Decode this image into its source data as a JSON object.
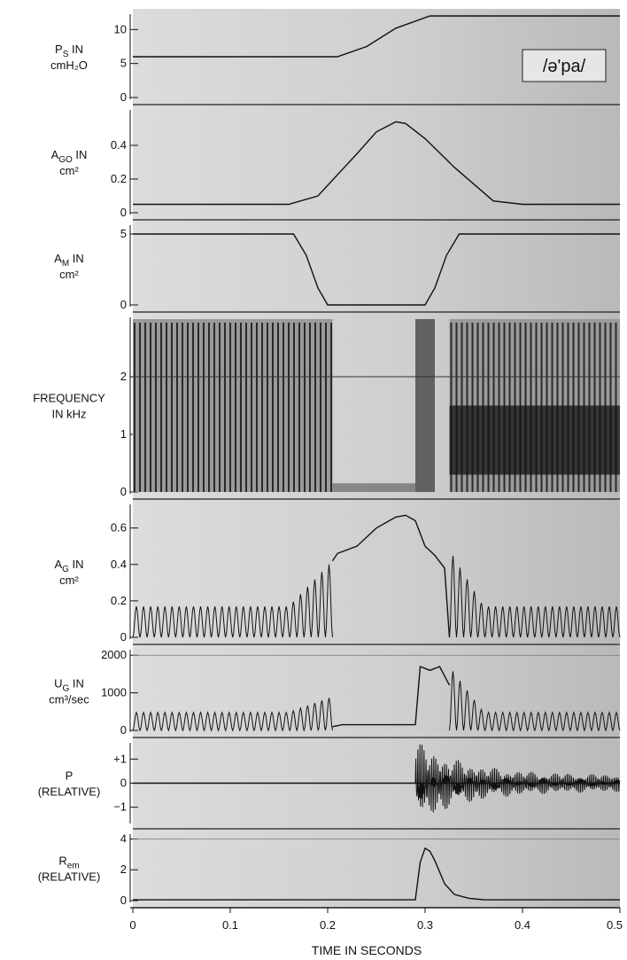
{
  "chart_data": {
    "type": "line",
    "colors": {
      "paper": "#d9d9d9",
      "trace": "#111111",
      "frame": "#111111"
    },
    "annotation": "/ə'pa/",
    "xaxis": {
      "label": "TIME IN SECONDS",
      "range": [
        0,
        0.5
      ],
      "ticks": [
        "0",
        "0.1",
        "0.2",
        "0.3",
        "0.4",
        "0.5"
      ]
    },
    "panels": [
      {
        "id": "ps",
        "label_main": "P",
        "label_sub": "S",
        "label_rest": " IN",
        "label_line2": "cmH₂O",
        "ylim": [
          0,
          12
        ],
        "yticks": [
          {
            "v": 10,
            "t": "10"
          },
          {
            "v": 5,
            "t": "5"
          },
          {
            "v": 0,
            "t": "0"
          }
        ],
        "series": [
          {
            "x": [
              0,
              0.21,
              0.24,
              0.27,
              0.305,
              0.5
            ],
            "y": [
              6,
              6,
              7.5,
              10.2,
              12,
              12
            ]
          }
        ]
      },
      {
        "id": "ago",
        "label_main": "A",
        "label_sub": "GO",
        "label_rest": " IN",
        "label_line2": "cm²",
        "ylim": [
          0,
          0.6
        ],
        "yticks": [
          {
            "v": 0.4,
            "t": "0.4"
          },
          {
            "v": 0.2,
            "t": "0.2"
          },
          {
            "v": 0,
            "t": "0"
          }
        ],
        "series": [
          {
            "x": [
              0,
              0.16,
              0.19,
              0.23,
              0.25,
              0.27,
              0.28,
              0.3,
              0.33,
              0.37,
              0.4,
              0.5
            ],
            "y": [
              0.05,
              0.05,
              0.1,
              0.35,
              0.48,
              0.54,
              0.53,
              0.44,
              0.27,
              0.07,
              0.05,
              0.05
            ]
          }
        ]
      },
      {
        "id": "am",
        "label_main": "A",
        "label_sub": "M",
        "label_rest": " IN",
        "label_line2": "cm²",
        "ylim": [
          0,
          5.5
        ],
        "yticks": [
          {
            "v": 5,
            "t": "5"
          },
          {
            "v": 0,
            "t": "0"
          }
        ],
        "series": [
          {
            "x": [
              0,
              0.165,
              0.178,
              0.19,
              0.2,
              0.3,
              0.31,
              0.322,
              0.335,
              0.5
            ],
            "y": [
              5,
              5,
              3.5,
              1.2,
              0,
              0,
              1.2,
              3.5,
              5,
              5
            ]
          }
        ]
      },
      {
        "id": "freq",
        "kind": "spectrogram",
        "label_main": "FREQUENCY",
        "label_sub": "",
        "label_rest": "",
        "label_line2": "IN kHz",
        "ylim": [
          0,
          3
        ],
        "yticks": [
          {
            "v": 2,
            "t": "2"
          },
          {
            "v": 1,
            "t": "1"
          },
          {
            "v": 0,
            "t": "0"
          }
        ],
        "voiced_segments": [
          [
            0,
            0.205
          ],
          [
            0.325,
            0.5
          ]
        ],
        "burst": [
          0.29,
          0.31
        ]
      },
      {
        "id": "ag",
        "label_main": "A",
        "label_sub": "G",
        "label_rest": " IN",
        "label_line2": "cm²",
        "ylim": [
          0,
          0.72
        ],
        "yticks": [
          {
            "v": 0.6,
            "t": "0.6"
          },
          {
            "v": 0.4,
            "t": "0.4"
          },
          {
            "v": 0.2,
            "t": "0.2"
          },
          {
            "v": 0,
            "t": "0"
          }
        ],
        "series": [
          {
            "x": [
              0.205,
              0.21,
              0.23,
              0.25,
              0.27,
              0.28,
              0.29,
              0.3,
              0.31,
              0.32,
              0.325
            ],
            "y": [
              0.42,
              0.46,
              0.5,
              0.6,
              0.66,
              0.67,
              0.64,
              0.5,
              0.45,
              0.38,
              0
            ]
          }
        ]
      },
      {
        "id": "ug",
        "label_main": "U",
        "label_sub": "G",
        "label_rest": " IN",
        "label_line2": "cm³/sec",
        "ylim": [
          0,
          2100
        ],
        "yticks": [
          {
            "v": 2000,
            "t": "2000"
          },
          {
            "v": 1000,
            "t": "1000"
          },
          {
            "v": 0,
            "t": "0"
          }
        ],
        "series": [
          {
            "x": [
              0.205,
              0.215,
              0.29,
              0.295,
              0.305,
              0.315,
              0.325
            ],
            "y": [
              100,
              150,
              150,
              1700,
              1600,
              1700,
              1200
            ]
          }
        ]
      },
      {
        "id": "p",
        "label_main": "P",
        "label_sub": "",
        "label_rest": "",
        "label_line2": "(RELATIVE)",
        "ylim": [
          -1.6,
          1.6
        ],
        "yticks": [
          {
            "v": 1,
            "t": "+1"
          },
          {
            "v": 0,
            "t": "0"
          },
          {
            "v": -1,
            "t": "−1"
          }
        ],
        "series": [
          {
            "x": [
              0,
              0.5
            ],
            "y": [
              0,
              0
            ]
          }
        ]
      },
      {
        "id": "rem",
        "label_main": "R",
        "label_sub": "em",
        "label_rest": "",
        "label_line2": "(RELATIVE)",
        "ylim": [
          0,
          4.2
        ],
        "yticks": [
          {
            "v": 4,
            "t": "4"
          },
          {
            "v": 2,
            "t": "2"
          },
          {
            "v": 0,
            "t": "0"
          }
        ],
        "series": [
          {
            "x": [
              0,
              0.29,
              0.295,
              0.3,
              0.305,
              0.31,
              0.32,
              0.33,
              0.345,
              0.36,
              0.5
            ],
            "y": [
              0.05,
              0.05,
              2.5,
              3.4,
              3.2,
              2.6,
              1.1,
              0.4,
              0.15,
              0.06,
              0.05
            ]
          }
        ]
      }
    ]
  }
}
